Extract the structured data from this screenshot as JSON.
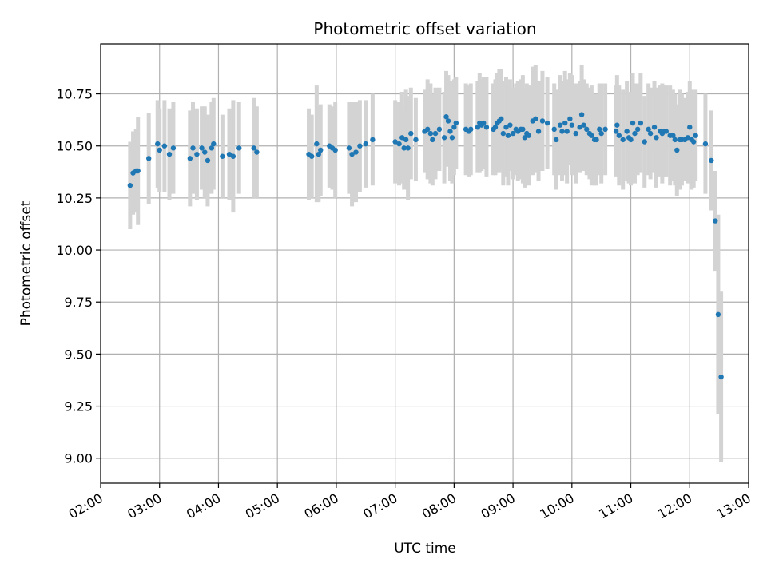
{
  "chart_data": {
    "type": "scatter",
    "title": "Photometric offset variation",
    "xlabel": "UTC time",
    "ylabel": "Photometric offset",
    "x_tick_labels": [
      "02:00",
      "03:00",
      "04:00",
      "05:00",
      "06:00",
      "07:00",
      "08:00",
      "09:00",
      "10:00",
      "11:00",
      "12:00",
      "13:00"
    ],
    "y_tick_labels": [
      "9.00",
      "9.25",
      "9.50",
      "9.75",
      "10.00",
      "10.25",
      "10.50",
      "10.75"
    ],
    "y_ticks": [
      9.0,
      9.25,
      9.5,
      9.75,
      10.0,
      10.25,
      10.5,
      10.75
    ],
    "xlim": [
      "02:00",
      "13:00"
    ],
    "ylim": [
      8.88,
      10.99
    ],
    "grid": true,
    "marker_color": "#1f77b4",
    "errorbar_color": "#d3d3d3",
    "series": [
      {
        "points": [
          [
            "02:30",
            10.31,
            0.21
          ],
          [
            "02:33",
            10.37,
            0.2
          ],
          [
            "02:36",
            10.38,
            0.2
          ],
          [
            "02:38",
            10.38,
            0.26
          ],
          [
            "02:49",
            10.44,
            0.22
          ],
          [
            "02:58",
            10.51,
            0.21
          ],
          [
            "03:00",
            10.48,
            0.2
          ],
          [
            "03:05",
            10.5,
            0.22
          ],
          [
            "03:10",
            10.46,
            0.22
          ],
          [
            "03:14",
            10.49,
            0.22
          ],
          [
            "03:31",
            10.44,
            0.23
          ],
          [
            "03:34",
            10.49,
            0.22
          ],
          [
            "03:38",
            10.46,
            0.22
          ],
          [
            "03:43",
            10.49,
            0.2
          ],
          [
            "03:46",
            10.47,
            0.22
          ],
          [
            "03:49",
            10.43,
            0.22
          ],
          [
            "03:53",
            10.49,
            0.22
          ],
          [
            "03:55",
            10.51,
            0.22
          ],
          [
            "04:04",
            10.45,
            0.2
          ],
          [
            "04:11",
            10.46,
            0.22
          ],
          [
            "04:15",
            10.45,
            0.27
          ],
          [
            "04:21",
            10.49,
            0.22
          ],
          [
            "04:36",
            10.49,
            0.24
          ],
          [
            "04:39",
            10.47,
            0.22
          ],
          [
            "05:32",
            10.46,
            0.22
          ],
          [
            "05:35",
            10.45,
            0.2
          ],
          [
            "05:40",
            10.51,
            0.28
          ],
          [
            "05:42",
            10.46,
            0.23
          ],
          [
            "05:44",
            10.48,
            0.22
          ],
          [
            "05:53",
            10.5,
            0.2
          ],
          [
            "05:56",
            10.49,
            0.2
          ],
          [
            "05:59",
            10.48,
            0.23
          ],
          [
            "06:13",
            10.49,
            0.22
          ],
          [
            "06:16",
            10.46,
            0.25
          ],
          [
            "06:20",
            10.47,
            0.24
          ],
          [
            "06:24",
            10.5,
            0.22
          ],
          [
            "06:30",
            10.51,
            0.21
          ],
          [
            "06:37",
            10.53,
            0.22
          ],
          [
            "07:00",
            10.52,
            0.2
          ],
          [
            "07:04",
            10.51,
            0.2
          ],
          [
            "07:07",
            10.54,
            0.22
          ],
          [
            "07:09",
            10.49,
            0.2
          ],
          [
            "07:11",
            10.53,
            0.24
          ],
          [
            "07:13",
            10.49,
            0.25
          ],
          [
            "07:16",
            10.56,
            0.22
          ],
          [
            "07:21",
            10.53,
            0.2
          ],
          [
            "07:30",
            10.57,
            0.2
          ],
          [
            "07:33",
            10.58,
            0.24
          ],
          [
            "07:36",
            10.56,
            0.24
          ],
          [
            "07:38",
            10.53,
            0.22
          ],
          [
            "07:41",
            10.56,
            0.22
          ],
          [
            "07:45",
            10.58,
            0.2
          ],
          [
            "07:50",
            10.54,
            0.22
          ],
          [
            "07:52",
            10.64,
            0.22
          ],
          [
            "07:54",
            10.62,
            0.22
          ],
          [
            "07:56",
            10.57,
            0.24
          ],
          [
            "07:58",
            10.54,
            0.22
          ],
          [
            "08:00",
            10.59,
            0.23
          ],
          [
            "08:02",
            10.61,
            0.22
          ],
          [
            "08:12",
            10.58,
            0.22
          ],
          [
            "08:15",
            10.57,
            0.22
          ],
          [
            "08:17",
            10.58,
            0.22
          ],
          [
            "08:24",
            10.59,
            0.22
          ],
          [
            "08:26",
            10.61,
            0.24
          ],
          [
            "08:28",
            10.6,
            0.22
          ],
          [
            "08:30",
            10.61,
            0.22
          ],
          [
            "08:33",
            10.59,
            0.24
          ],
          [
            "08:40",
            10.58,
            0.22
          ],
          [
            "08:42",
            10.59,
            0.23
          ],
          [
            "08:44",
            10.61,
            0.24
          ],
          [
            "08:46",
            10.62,
            0.25
          ],
          [
            "08:48",
            10.63,
            0.24
          ],
          [
            "08:50",
            10.56,
            0.25
          ],
          [
            "08:53",
            10.59,
            0.24
          ],
          [
            "08:55",
            10.55,
            0.24
          ],
          [
            "08:57",
            10.6,
            0.22
          ],
          [
            "09:00",
            10.56,
            0.22
          ],
          [
            "09:03",
            10.58,
            0.22
          ],
          [
            "09:05",
            10.57,
            0.24
          ],
          [
            "09:08",
            10.58,
            0.24
          ],
          [
            "09:10",
            10.58,
            0.26
          ],
          [
            "09:12",
            10.54,
            0.24
          ],
          [
            "09:14",
            10.56,
            0.24
          ],
          [
            "09:16",
            10.55,
            0.24
          ],
          [
            "09:20",
            10.62,
            0.26
          ],
          [
            "09:23",
            10.63,
            0.26
          ],
          [
            "09:26",
            10.57,
            0.24
          ],
          [
            "09:30",
            10.62,
            0.24
          ],
          [
            "09:35",
            10.61,
            0.22
          ],
          [
            "09:42",
            10.58,
            0.22
          ],
          [
            "09:44",
            10.53,
            0.24
          ],
          [
            "09:48",
            10.6,
            0.24
          ],
          [
            "09:50",
            10.57,
            0.24
          ],
          [
            "09:53",
            10.61,
            0.25
          ],
          [
            "09:55",
            10.57,
            0.25
          ],
          [
            "09:58",
            10.63,
            0.22
          ],
          [
            "10:00",
            10.6,
            0.24
          ],
          [
            "10:04",
            10.56,
            0.24
          ],
          [
            "10:08",
            10.59,
            0.22
          ],
          [
            "10:10",
            10.65,
            0.24
          ],
          [
            "10:12",
            10.6,
            0.22
          ],
          [
            "10:15",
            10.58,
            0.22
          ],
          [
            "10:18",
            10.56,
            0.22
          ],
          [
            "10:20",
            10.55,
            0.24
          ],
          [
            "10:23",
            10.53,
            0.22
          ],
          [
            "10:25",
            10.53,
            0.22
          ],
          [
            "10:28",
            10.58,
            0.22
          ],
          [
            "10:30",
            10.56,
            0.24
          ],
          [
            "10:34",
            10.58,
            0.22
          ],
          [
            "10:45",
            10.57,
            0.22
          ],
          [
            "10:46",
            10.6,
            0.24
          ],
          [
            "10:48",
            10.55,
            0.24
          ],
          [
            "10:52",
            10.53,
            0.24
          ],
          [
            "10:56",
            10.57,
            0.24
          ],
          [
            "10:58",
            10.54,
            0.22
          ],
          [
            "11:00",
            10.53,
            0.22
          ],
          [
            "11:02",
            10.61,
            0.24
          ],
          [
            "11:04",
            10.56,
            0.24
          ],
          [
            "11:07",
            10.58,
            0.22
          ],
          [
            "11:10",
            10.61,
            0.24
          ],
          [
            "11:14",
            10.52,
            0.22
          ],
          [
            "11:18",
            10.58,
            0.22
          ],
          [
            "11:20",
            10.56,
            0.22
          ],
          [
            "11:24",
            10.59,
            0.22
          ],
          [
            "11:26",
            10.54,
            0.24
          ],
          [
            "11:30",
            10.57,
            0.22
          ],
          [
            "11:32",
            10.56,
            0.24
          ],
          [
            "11:34",
            10.57,
            0.22
          ],
          [
            "11:36",
            10.57,
            0.22
          ],
          [
            "11:40",
            10.55,
            0.24
          ],
          [
            "11:43",
            10.55,
            0.22
          ],
          [
            "11:45",
            10.53,
            0.22
          ],
          [
            "11:47",
            10.48,
            0.22
          ],
          [
            "11:50",
            10.53,
            0.24
          ],
          [
            "11:52",
            10.53,
            0.22
          ],
          [
            "11:55",
            10.53,
            0.2
          ],
          [
            "11:58",
            10.54,
            0.22
          ],
          [
            "12:00",
            10.59,
            0.22
          ],
          [
            "12:02",
            10.53,
            0.24
          ],
          [
            "12:04",
            10.52,
            0.22
          ],
          [
            "12:06",
            10.55,
            0.22
          ],
          [
            "12:16",
            10.51,
            0.24
          ],
          [
            "12:22",
            10.43,
            0.24
          ],
          [
            "12:26",
            10.14,
            0.24
          ],
          [
            "12:29",
            9.69,
            0.48
          ],
          [
            "12:32",
            9.39,
            0.41
          ]
        ]
      }
    ]
  }
}
